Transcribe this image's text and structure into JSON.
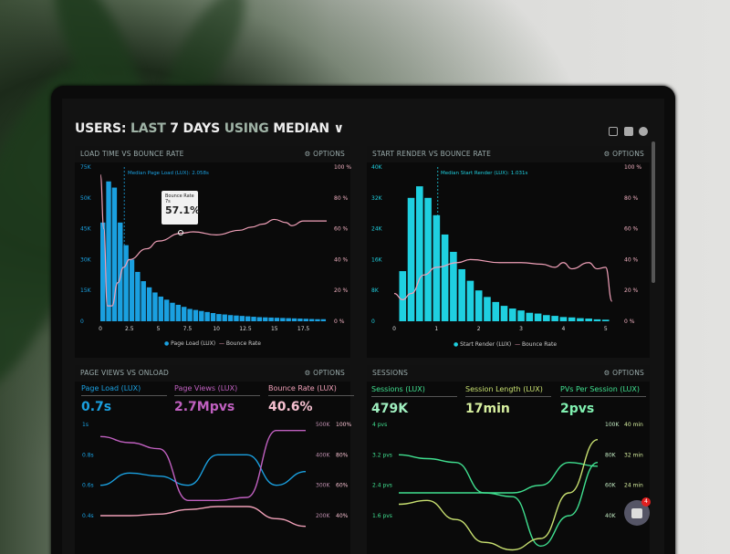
{
  "header": {
    "title_parts": [
      "USERS:",
      "LAST",
      "7 DAYS",
      "USING",
      "MEDIAN"
    ],
    "chevron": "chevron-down-icon",
    "icons": [
      "monitor-icon",
      "share-icon",
      "help-icon"
    ]
  },
  "colors": {
    "blue": "#1aa0e0",
    "cyan": "#1fd0e0",
    "pink": "#f0a0b8",
    "purple": "#c060c0",
    "green": "#40e090",
    "lime": "#c8e070"
  },
  "options_label": "⚙ OPTIONS",
  "panels": [
    {
      "title": "LOAD TIME VS BOUNCE RATE",
      "median_label": "Median Page Load (LUX): 2.058s",
      "tooltip": {
        "label": "Bounce Rate",
        "sub": "7s",
        "value": "57.1%"
      },
      "legend": [
        "Page Load (LUX)",
        "Bounce Rate"
      ]
    },
    {
      "title": "START RENDER VS BOUNCE RATE",
      "median_label": "Median Start Render (LUX): 1.031s",
      "legend": [
        "Start Render (LUX)",
        "Bounce Rate"
      ]
    },
    {
      "title": "PAGE VIEWS VS ONLOAD",
      "kpis": [
        {
          "label": "Page Load (LUX)",
          "value": "0.7s"
        },
        {
          "label": "Page Views (LUX)",
          "value": "2.7Mpvs"
        },
        {
          "label": "Bounce Rate (LUX)",
          "value": "40.6%"
        }
      ]
    },
    {
      "title": "SESSIONS",
      "kpis": [
        {
          "label": "Sessions (LUX)",
          "value": "479K"
        },
        {
          "label": "Session Length (LUX)",
          "value": "17min"
        },
        {
          "label": "PVs Per Session (LUX)",
          "value": "2pvs"
        }
      ]
    }
  ],
  "chat": {
    "badge": "4"
  },
  "chart_data": [
    {
      "type": "bar",
      "title": "LOAD TIME VS BOUNCE RATE",
      "xlim": [
        0,
        19.5
      ],
      "ylim": [
        0,
        75
      ],
      "y2lim": [
        0,
        100
      ],
      "xticks": [
        "0",
        "2.5",
        "5",
        "7.5",
        "10",
        "12.5",
        "15",
        "17.5"
      ],
      "yticks": [
        "0",
        "15K",
        "30K",
        "45K",
        "50K",
        "75K"
      ],
      "y2ticks": [
        "0 %",
        "20 %",
        "40 %",
        "60 %",
        "80 %",
        "100 %"
      ],
      "bars": {
        "name": "Page Load (LUX)",
        "x": [
          0,
          0.5,
          1,
          1.5,
          2,
          2.5,
          3,
          3.5,
          4,
          4.5,
          5,
          5.5,
          6,
          6.5,
          7,
          7.5,
          8,
          8.5,
          9,
          9.5,
          10,
          10.5,
          11,
          11.5,
          12,
          12.5,
          13,
          13.5,
          14,
          14.5,
          15,
          15.5,
          16,
          16.5,
          17,
          17.5,
          18,
          18.5,
          19
        ],
        "values": [
          48,
          68,
          65,
          48,
          37,
          30,
          24,
          19.5,
          16.5,
          14,
          12,
          10.5,
          9,
          8,
          7,
          6,
          5.5,
          5,
          4.5,
          4,
          3.5,
          3.3,
          3,
          2.8,
          2.6,
          2.4,
          2.2,
          2,
          1.9,
          1.8,
          1.7,
          1.6,
          1.5,
          1.4,
          1.3,
          1.2,
          1.1,
          1,
          1
        ]
      },
      "line": {
        "name": "Bounce Rate",
        "x": [
          0,
          0.3,
          0.6,
          1,
          1.5,
          2,
          2.5,
          4,
          5,
          7,
          8,
          10,
          12,
          13,
          14,
          15,
          16,
          16.5,
          17.5,
          19.5
        ],
        "values": [
          95,
          60,
          10,
          10,
          25,
          35,
          40,
          47,
          52,
          57.1,
          58,
          56,
          59,
          61,
          63,
          66,
          64,
          62,
          65,
          65
        ]
      },
      "median": 2.058
    },
    {
      "type": "bar",
      "title": "START RENDER VS BOUNCE RATE",
      "xlim": [
        0,
        5.2
      ],
      "ylim": [
        0,
        40
      ],
      "y2lim": [
        0,
        100
      ],
      "xticks": [
        "0",
        "1",
        "2",
        "3",
        "4",
        "5"
      ],
      "yticks": [
        "0",
        "8K",
        "16K",
        "24K",
        "32K",
        "40K"
      ],
      "y2ticks": [
        "0 %",
        "20 %",
        "40 %",
        "60 %",
        "80 %",
        "100 %"
      ],
      "bars": {
        "name": "Start Render (LUX)",
        "x": [
          0.2,
          0.4,
          0.6,
          0.8,
          1,
          1.2,
          1.4,
          1.6,
          1.8,
          2,
          2.2,
          2.4,
          2.6,
          2.8,
          3,
          3.2,
          3.4,
          3.6,
          3.8,
          4,
          4.2,
          4.4,
          4.6,
          4.8,
          5
        ],
        "values": [
          13,
          32,
          35,
          32,
          27.5,
          22.5,
          18,
          13.5,
          10.5,
          8,
          6.3,
          5,
          4,
          3.3,
          2.8,
          2.2,
          2,
          1.6,
          1.4,
          1.1,
          1,
          0.8,
          0.7,
          0.5,
          0.4
        ]
      },
      "line": {
        "name": "Bounce Rate",
        "x": [
          0,
          0.2,
          0.4,
          0.7,
          1,
          1.5,
          1.8,
          2.5,
          3,
          3.5,
          3.8,
          4,
          4.2,
          4.6,
          4.8,
          5,
          5.15
        ],
        "values": [
          18,
          14,
          18,
          30,
          35,
          38,
          40,
          38,
          38,
          37,
          35,
          38,
          34,
          38,
          34,
          35,
          13
        ]
      },
      "median": 1.031
    },
    {
      "type": "line",
      "title": "PAGE VIEWS VS ONLOAD",
      "yticks": [
        "0.4s",
        "0.6s",
        "0.8s",
        "1s"
      ],
      "y2ticks": [
        "200K",
        "300K",
        "400K",
        "500K"
      ],
      "y3ticks": [
        "40%",
        "60%",
        "80%",
        "100%"
      ],
      "series": [
        {
          "name": "Page Load (LUX)",
          "values": [
            0.6,
            0.68,
            0.66,
            0.6,
            0.8,
            0.8,
            0.6,
            0.69
          ]
        },
        {
          "name": "Page Views (LUX)",
          "values": [
            460,
            440,
            420,
            250,
            250,
            260,
            480,
            480
          ]
        },
        {
          "name": "Bounce Rate (LUX)",
          "values": [
            40,
            40,
            41,
            44,
            46,
            46,
            38,
            33
          ]
        }
      ]
    },
    {
      "type": "line",
      "title": "SESSIONS",
      "yticks": [
        "1.6 pvs",
        "2.4 pvs",
        "3.2 pvs",
        "4 pvs"
      ],
      "y2ticks": [
        "40K",
        "60K",
        "80K",
        "100K"
      ],
      "y3ticks": [
        "24 min",
        "32 min",
        "40 min"
      ],
      "series": [
        {
          "name": "Sessions (LUX)",
          "values": [
            3.2,
            3.1,
            3.0,
            2.2,
            2.2,
            2.4,
            3.0,
            2.9
          ]
        },
        {
          "name": "Session Length (LUX)",
          "values": [
            2.2,
            2.2,
            2.2,
            2.2,
            2.1,
            0.8,
            1.6,
            3.0
          ]
        },
        {
          "name": "PVs Per Session (LUX)",
          "values": [
            1.9,
            2.0,
            1.5,
            0.9,
            0.7,
            1.0,
            2.2,
            3.6
          ]
        }
      ]
    }
  ]
}
